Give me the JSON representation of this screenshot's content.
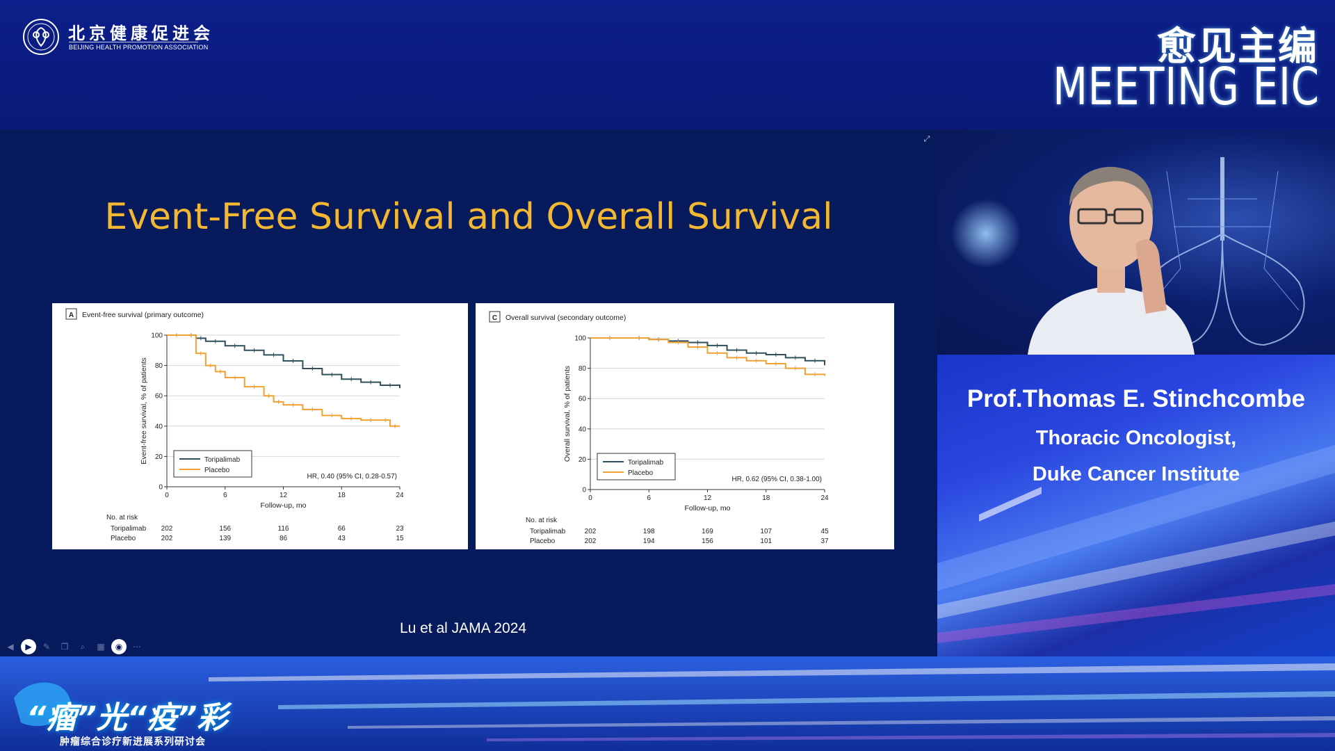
{
  "header": {
    "org_name_cn": "北京健康促进会",
    "org_name_en": "BEIJING HEALTH PROMOTION ASSOCIATION",
    "brand_cn": "愈见主编",
    "brand_en": "MEETING EIC"
  },
  "slide": {
    "title": "Event-Free Survival and Overall Survival",
    "citation": "Lu et al JAMA 2024"
  },
  "speaker": {
    "name": "Prof.Thomas E. Stinchcombe",
    "title": "Thoracic Oncologist,",
    "institution": "Duke Cancer Institute"
  },
  "footer": {
    "title": "“瘤”光“疫”彩",
    "subtitle": "肿瘤综合诊疗新进展系列研讨会"
  },
  "colors": {
    "toripalimab": "#2f4f5c",
    "placebo": "#f0a030",
    "slide_title": "#f4b731"
  },
  "icons": [
    "prev-icon",
    "play-icon",
    "pen-icon",
    "copy-icon",
    "zoom-icon",
    "grid-icon",
    "camera-icon",
    "more-icon"
  ],
  "chart_data": [
    {
      "type": "line",
      "panel_letter": "A",
      "title": "Event-free survival (primary outcome)",
      "xlabel": "Follow-up, mo",
      "ylabel": "Event-free survival, % of patients",
      "xlim": [
        0,
        24
      ],
      "ylim": [
        0,
        100
      ],
      "xticks": [
        0,
        6,
        12,
        18,
        24
      ],
      "yticks": [
        0,
        20,
        40,
        60,
        80,
        100
      ],
      "grid": true,
      "legend_position": "bottom-left",
      "annotation": "HR, 0.40 (95% CI, 0.28-0.57)",
      "series": [
        {
          "name": "Toripalimab",
          "x": [
            0,
            2,
            3,
            4,
            6,
            8,
            10,
            12,
            14,
            16,
            18,
            20,
            22,
            24
          ],
          "y": [
            100,
            100,
            98,
            96,
            93,
            90,
            87,
            83,
            78,
            74,
            71,
            69,
            67,
            65
          ]
        },
        {
          "name": "Placebo",
          "x": [
            0,
            2,
            3,
            4,
            5,
            6,
            8,
            10,
            11,
            12,
            14,
            16,
            18,
            20,
            22,
            23,
            24
          ],
          "y": [
            100,
            100,
            88,
            80,
            76,
            72,
            66,
            60,
            56,
            54,
            51,
            47,
            45,
            44,
            44,
            40,
            40
          ]
        }
      ],
      "at_risk": {
        "label": "No. at risk",
        "timepoints": [
          0,
          6,
          12,
          18,
          24
        ],
        "rows": [
          {
            "name": "Toripalimab",
            "values": [
              "202",
              "156",
              "116",
              "66",
              "23"
            ]
          },
          {
            "name": "Placebo",
            "values": [
              "202",
              "139",
              "86",
              "43",
              "15"
            ]
          }
        ]
      }
    },
    {
      "type": "line",
      "panel_letter": "C",
      "title": "Overall survival (secondary outcome)",
      "xlabel": "Follow-up, mo",
      "ylabel": "Overall survival, % of patients",
      "xlim": [
        0,
        24
      ],
      "ylim": [
        0,
        100
      ],
      "xticks": [
        0,
        6,
        12,
        18,
        24
      ],
      "yticks": [
        0,
        20,
        40,
        60,
        80,
        100
      ],
      "grid": true,
      "legend_position": "bottom-left",
      "annotation": "HR, 0.62 (95% CI, 0.38-1.00)",
      "series": [
        {
          "name": "Toripalimab",
          "x": [
            0,
            4,
            6,
            8,
            10,
            12,
            14,
            16,
            18,
            20,
            22,
            24
          ],
          "y": [
            100,
            100,
            99,
            98,
            97,
            95,
            92,
            90,
            89,
            87,
            85,
            82
          ]
        },
        {
          "name": "Placebo",
          "x": [
            0,
            4,
            6,
            8,
            10,
            12,
            14,
            16,
            18,
            20,
            22,
            24
          ],
          "y": [
            100,
            100,
            99,
            97,
            94,
            90,
            87,
            85,
            83,
            80,
            76,
            75
          ]
        }
      ],
      "at_risk": {
        "label": "No. at risk",
        "timepoints": [
          0,
          6,
          12,
          18,
          24
        ],
        "rows": [
          {
            "name": "Toripalimab",
            "values": [
              "202",
              "198",
              "169",
              "107",
              "45"
            ]
          },
          {
            "name": "Placebo",
            "values": [
              "202",
              "194",
              "156",
              "101",
              "37"
            ]
          }
        ]
      }
    }
  ]
}
